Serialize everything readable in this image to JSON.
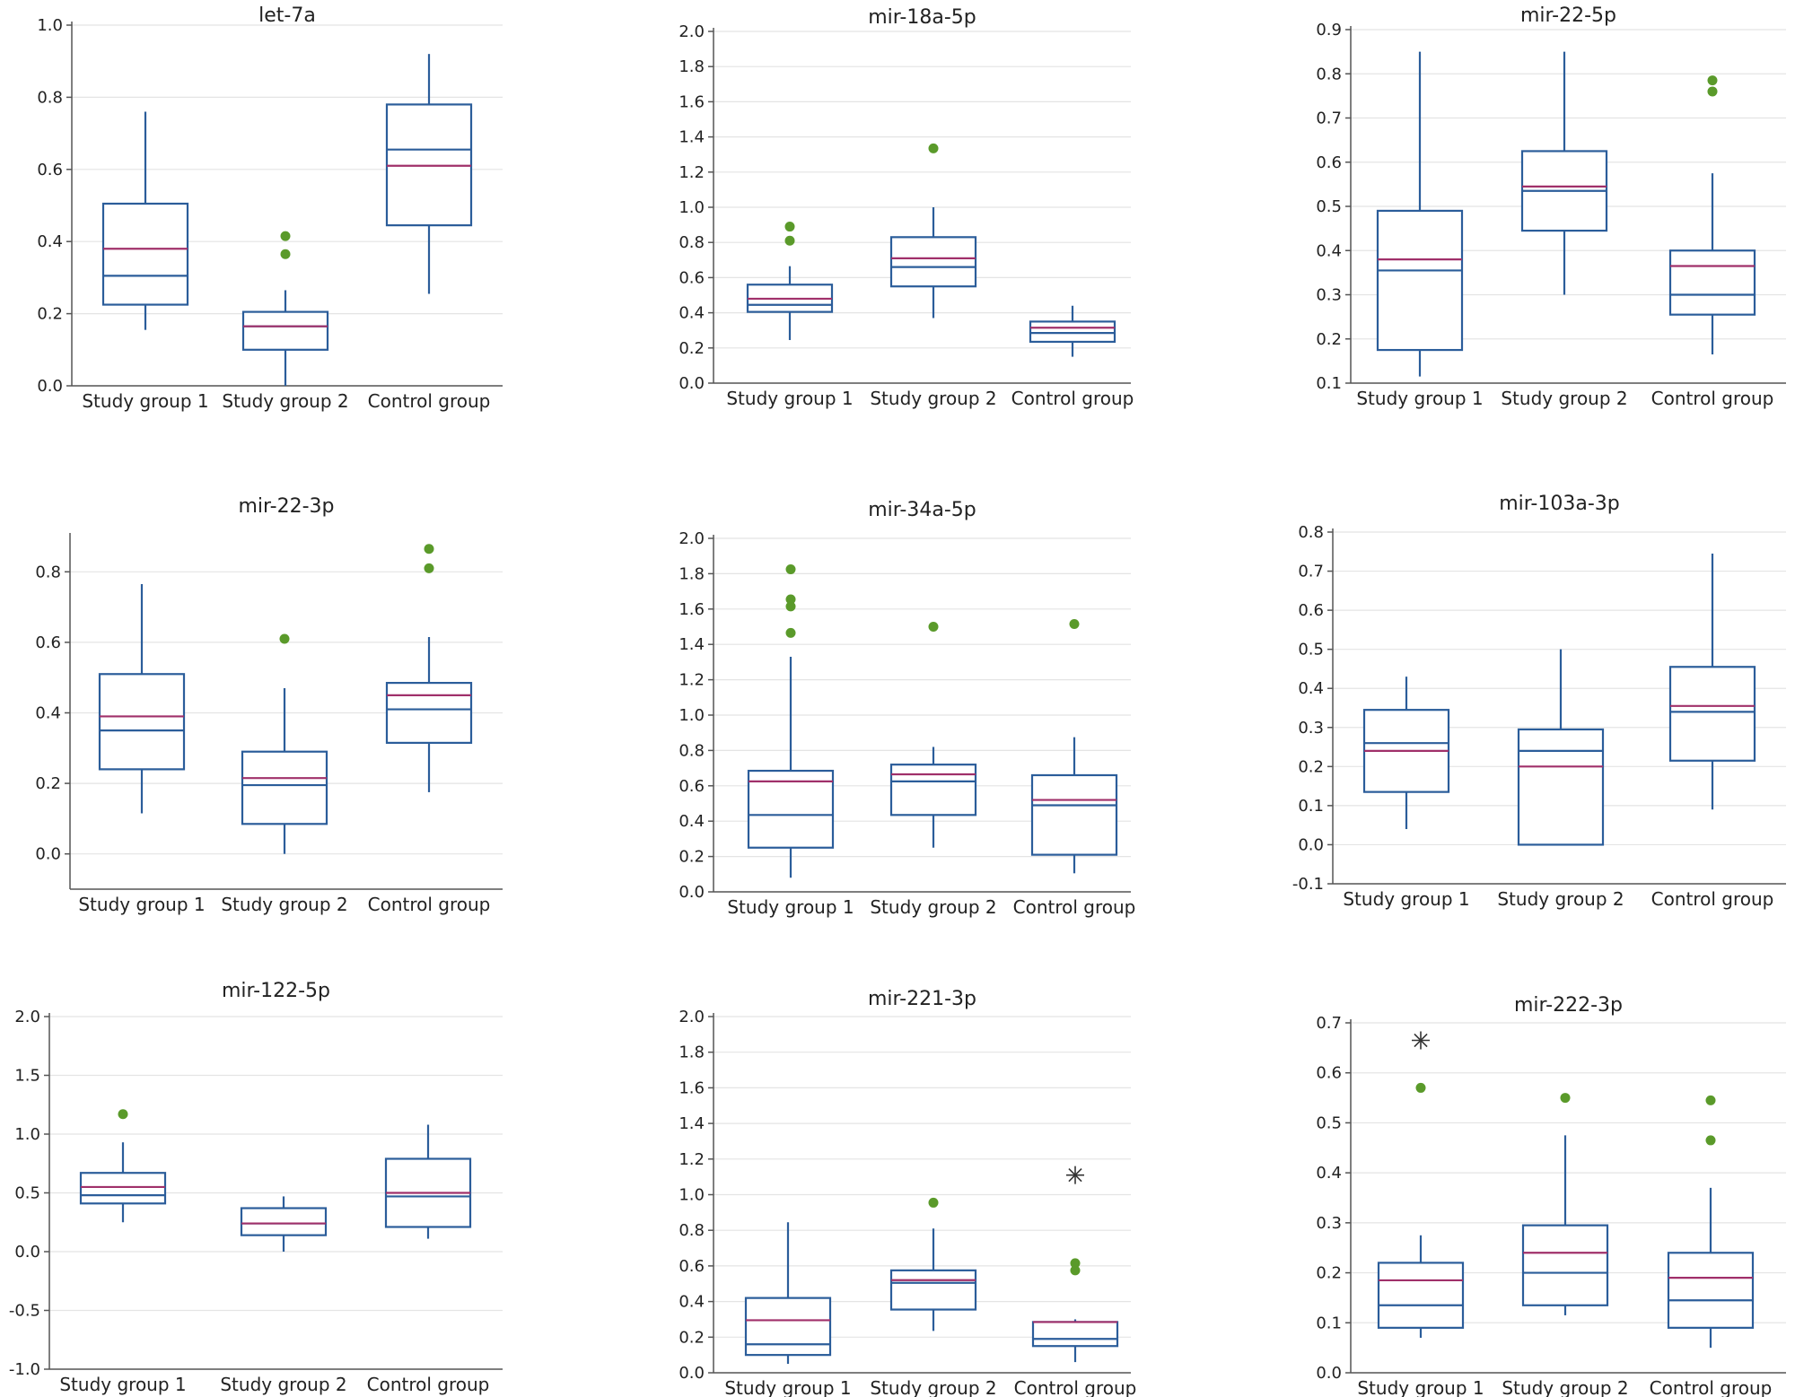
{
  "colors": {
    "box_stroke": "#2b5d9a",
    "median": "#2b5d9a",
    "mean": "#a0306a",
    "outlier": "#5a9a2a",
    "extreme": "#333333",
    "grid": "#e4e4e4",
    "axis": "#555555"
  },
  "chart_data": [
    {
      "type": "box",
      "title": "let-7a",
      "categories": [
        "Study group 1",
        "Study group 2",
        "Control group"
      ],
      "ylim": [
        0.0,
        1.0
      ],
      "yticks": [
        0.0,
        0.2,
        0.4,
        0.6,
        0.8,
        1.0
      ],
      "ytick_labels": [
        "0.0",
        "0.2",
        "0.4",
        "0.6",
        "0.8",
        "1.0"
      ],
      "grid": true,
      "boxes": [
        {
          "whisker_low": 0.155,
          "q1": 0.225,
          "median": 0.305,
          "mean": 0.38,
          "q3": 0.505,
          "whisker_high": 0.76,
          "outliers": [],
          "extremes": []
        },
        {
          "whisker_low": 0.0,
          "q1": 0.1,
          "median": 0.165,
          "mean": 0.165,
          "q3": 0.205,
          "whisker_high": 0.265,
          "outliers": [
            0.415,
            0.365
          ],
          "extremes": []
        },
        {
          "whisker_low": 0.255,
          "q1": 0.445,
          "median": 0.655,
          "mean": 0.61,
          "q3": 0.78,
          "whisker_high": 0.92,
          "outliers": [],
          "extremes": []
        }
      ]
    },
    {
      "type": "box",
      "title": "mir-18a-5p",
      "categories": [
        "Study group 1",
        "Study group 2",
        "Control group"
      ],
      "ylim": [
        0.0,
        2.0
      ],
      "yticks": [
        0.0,
        0.2,
        0.4,
        0.6,
        0.8,
        1.0,
        1.2,
        1.4,
        1.6,
        1.8,
        2.0
      ],
      "ytick_labels": [
        "0.0",
        "0.2",
        "0.4",
        "0.6",
        "0.8",
        "1.0",
        "1.2",
        "1.4",
        "1.6",
        "1.8",
        "2.0"
      ],
      "grid": true,
      "boxes": [
        {
          "whisker_low": 0.245,
          "q1": 0.405,
          "median": 0.445,
          "mean": 0.48,
          "q3": 0.56,
          "whisker_high": 0.665,
          "outliers": [
            0.89,
            0.81
          ],
          "extremes": []
        },
        {
          "whisker_low": 0.37,
          "q1": 0.55,
          "median": 0.66,
          "mean": 0.71,
          "q3": 0.83,
          "whisker_high": 1.0,
          "outliers": [
            1.335
          ],
          "extremes": []
        },
        {
          "whisker_low": 0.15,
          "q1": 0.235,
          "median": 0.285,
          "mean": 0.315,
          "q3": 0.35,
          "whisker_high": 0.44,
          "outliers": [],
          "extremes": []
        }
      ]
    },
    {
      "type": "box",
      "title": "mir-22-5p",
      "categories": [
        "Study group 1",
        "Study group 2",
        "Control group"
      ],
      "ylim": [
        0.1,
        0.9
      ],
      "yticks": [
        0.1,
        0.2,
        0.3,
        0.4,
        0.5,
        0.6,
        0.7,
        0.8,
        0.9
      ],
      "ytick_labels": [
        "0.1",
        "0.2",
        "0.3",
        "0.4",
        "0.5",
        "0.6",
        "0.7",
        "0.8",
        "0.9"
      ],
      "grid": true,
      "boxes": [
        {
          "whisker_low": 0.115,
          "q1": 0.175,
          "median": 0.355,
          "mean": 0.38,
          "q3": 0.49,
          "whisker_high": 0.85,
          "outliers": [],
          "extremes": []
        },
        {
          "whisker_low": 0.3,
          "q1": 0.445,
          "median": 0.535,
          "mean": 0.545,
          "q3": 0.625,
          "whisker_high": 0.85,
          "outliers": [],
          "extremes": []
        },
        {
          "whisker_low": 0.165,
          "q1": 0.255,
          "median": 0.3,
          "mean": 0.365,
          "q3": 0.4,
          "whisker_high": 0.575,
          "outliers": [
            0.785,
            0.76
          ],
          "extremes": []
        }
      ]
    },
    {
      "type": "box",
      "title": "mir-22-3p",
      "categories": [
        "Study group 1",
        "Study group 2",
        "Control group"
      ],
      "ylim": [
        -0.1,
        0.9
      ],
      "yticks": [
        0.0,
        0.2,
        0.4,
        0.6,
        0.8
      ],
      "ytick_labels": [
        "0.0",
        "0.2",
        "0.4",
        "0.6",
        "0.8"
      ],
      "grid": true,
      "boxes": [
        {
          "whisker_low": 0.115,
          "q1": 0.24,
          "median": 0.35,
          "mean": 0.39,
          "q3": 0.51,
          "whisker_high": 0.765,
          "outliers": [],
          "extremes": []
        },
        {
          "whisker_low": 0.0,
          "q1": 0.085,
          "median": 0.195,
          "mean": 0.215,
          "q3": 0.29,
          "whisker_high": 0.47,
          "outliers": [
            0.61
          ],
          "extremes": []
        },
        {
          "whisker_low": 0.175,
          "q1": 0.315,
          "median": 0.41,
          "mean": 0.45,
          "q3": 0.485,
          "whisker_high": 0.615,
          "outliers": [
            0.865,
            0.81
          ],
          "extremes": []
        }
      ]
    },
    {
      "type": "box",
      "title": "mir-34a-5p",
      "categories": [
        "Study group 1",
        "Study group 2",
        "Control group"
      ],
      "ylim": [
        0.0,
        2.0
      ],
      "yticks": [
        0.0,
        0.2,
        0.4,
        0.6,
        0.8,
        1.0,
        1.2,
        1.4,
        1.6,
        1.8,
        2.0
      ],
      "ytick_labels": [
        "0.0",
        "0.2",
        "0.4",
        "0.6",
        "0.8",
        "1.0",
        "1.2",
        "1.4",
        "1.6",
        "1.8",
        "2.0"
      ],
      "grid": true,
      "boxes": [
        {
          "whisker_low": 0.08,
          "q1": 0.25,
          "median": 0.435,
          "mean": 0.625,
          "q3": 0.685,
          "whisker_high": 1.33,
          "outliers": [
            1.825,
            1.655,
            1.615,
            1.465
          ],
          "extremes": []
        },
        {
          "whisker_low": 0.25,
          "q1": 0.435,
          "median": 0.625,
          "mean": 0.665,
          "q3": 0.72,
          "whisker_high": 0.82,
          "outliers": [
            1.5
          ],
          "extremes": []
        },
        {
          "whisker_low": 0.105,
          "q1": 0.21,
          "median": 0.49,
          "mean": 0.52,
          "q3": 0.66,
          "whisker_high": 0.875,
          "outliers": [
            1.515
          ],
          "extremes": []
        }
      ]
    },
    {
      "type": "box",
      "title": "mir-103a-3p",
      "categories": [
        "Study group 1",
        "Study group 2",
        "Control group"
      ],
      "ylim": [
        -0.1,
        0.8
      ],
      "yticks": [
        -0.1,
        0.0,
        0.1,
        0.2,
        0.3,
        0.4,
        0.5,
        0.6,
        0.7,
        0.8
      ],
      "ytick_labels": [
        "-0.1",
        "0.0",
        "0.1",
        "0.2",
        "0.3",
        "0.4",
        "0.5",
        "0.6",
        "0.7",
        "0.8"
      ],
      "grid": true,
      "boxes": [
        {
          "whisker_low": 0.04,
          "q1": 0.135,
          "median": 0.26,
          "mean": 0.24,
          "q3": 0.345,
          "whisker_high": 0.43,
          "outliers": [],
          "extremes": []
        },
        {
          "whisker_low": 0.0,
          "q1": 0.0,
          "median": 0.24,
          "mean": 0.2,
          "q3": 0.295,
          "whisker_high": 0.5,
          "outliers": [],
          "extremes": []
        },
        {
          "whisker_low": 0.09,
          "q1": 0.215,
          "median": 0.34,
          "mean": 0.355,
          "q3": 0.455,
          "whisker_high": 0.745,
          "outliers": [],
          "extremes": []
        }
      ]
    },
    {
      "type": "box",
      "title": "mir-122-5p",
      "categories": [
        "Study group 1",
        "Study group 2",
        "Control group"
      ],
      "ylim": [
        -1.0,
        2.0
      ],
      "yticks": [
        -1.0,
        -0.5,
        0.0,
        0.5,
        1.0,
        1.5,
        2.0
      ],
      "ytick_labels": [
        "-1.0",
        "-0.5",
        "0.0",
        "0.5",
        "1.0",
        "1.5",
        "2.0"
      ],
      "grid": true,
      "boxes": [
        {
          "whisker_low": 0.25,
          "q1": 0.41,
          "median": 0.48,
          "mean": 0.55,
          "q3": 0.67,
          "whisker_high": 0.93,
          "outliers": [
            1.17
          ],
          "extremes": []
        },
        {
          "whisker_low": 0.0,
          "q1": 0.14,
          "median": 0.24,
          "mean": 0.24,
          "q3": 0.37,
          "whisker_high": 0.47,
          "outliers": [],
          "extremes": []
        },
        {
          "whisker_low": 0.11,
          "q1": 0.21,
          "median": 0.47,
          "mean": 0.5,
          "q3": 0.79,
          "whisker_high": 1.08,
          "outliers": [],
          "extremes": []
        }
      ]
    },
    {
      "type": "box",
      "title": "mir-221-3p",
      "categories": [
        "Study group 1",
        "Study group 2",
        "Control group"
      ],
      "ylim": [
        0.0,
        2.0
      ],
      "yticks": [
        0.0,
        0.2,
        0.4,
        0.6,
        0.8,
        1.0,
        1.2,
        1.4,
        1.6,
        1.8,
        2.0
      ],
      "ytick_labels": [
        "0.0",
        "0.2",
        "0.4",
        "0.6",
        "0.8",
        "1.0",
        "1.2",
        "1.4",
        "1.6",
        "1.8",
        "2.0"
      ],
      "grid": true,
      "boxes": [
        {
          "whisker_low": 0.05,
          "q1": 0.1,
          "median": 0.16,
          "mean": 0.295,
          "q3": 0.42,
          "whisker_high": 0.845,
          "outliers": [],
          "extremes": []
        },
        {
          "whisker_low": 0.235,
          "q1": 0.355,
          "median": 0.505,
          "mean": 0.52,
          "q3": 0.575,
          "whisker_high": 0.81,
          "outliers": [
            0.955
          ],
          "extremes": []
        },
        {
          "whisker_low": 0.06,
          "q1": 0.15,
          "median": 0.19,
          "mean": 0.285,
          "q3": 0.285,
          "whisker_high": 0.3,
          "outliers": [
            0.615,
            0.575
          ],
          "extremes": [
            1.11
          ]
        }
      ]
    },
    {
      "type": "box",
      "title": "mir-222-3p",
      "categories": [
        "Study group 1",
        "Study group 2",
        "Control group"
      ],
      "ylim": [
        0.0,
        0.7
      ],
      "yticks": [
        0.0,
        0.1,
        0.2,
        0.3,
        0.4,
        0.5,
        0.6,
        0.7
      ],
      "ytick_labels": [
        "0.0",
        "0.1",
        "0.2",
        "0.3",
        "0.4",
        "0.5",
        "0.6",
        "0.7"
      ],
      "grid": true,
      "boxes": [
        {
          "whisker_low": 0.07,
          "q1": 0.09,
          "median": 0.135,
          "mean": 0.185,
          "q3": 0.22,
          "whisker_high": 0.275,
          "outliers": [
            0.57
          ],
          "extremes": [
            0.665
          ]
        },
        {
          "whisker_low": 0.115,
          "q1": 0.135,
          "median": 0.2,
          "mean": 0.24,
          "q3": 0.295,
          "whisker_high": 0.475,
          "outliers": [
            0.55
          ],
          "extremes": []
        },
        {
          "whisker_low": 0.05,
          "q1": 0.09,
          "median": 0.145,
          "mean": 0.19,
          "q3": 0.24,
          "whisker_high": 0.37,
          "outliers": [
            0.545,
            0.465
          ],
          "extremes": []
        }
      ]
    }
  ]
}
